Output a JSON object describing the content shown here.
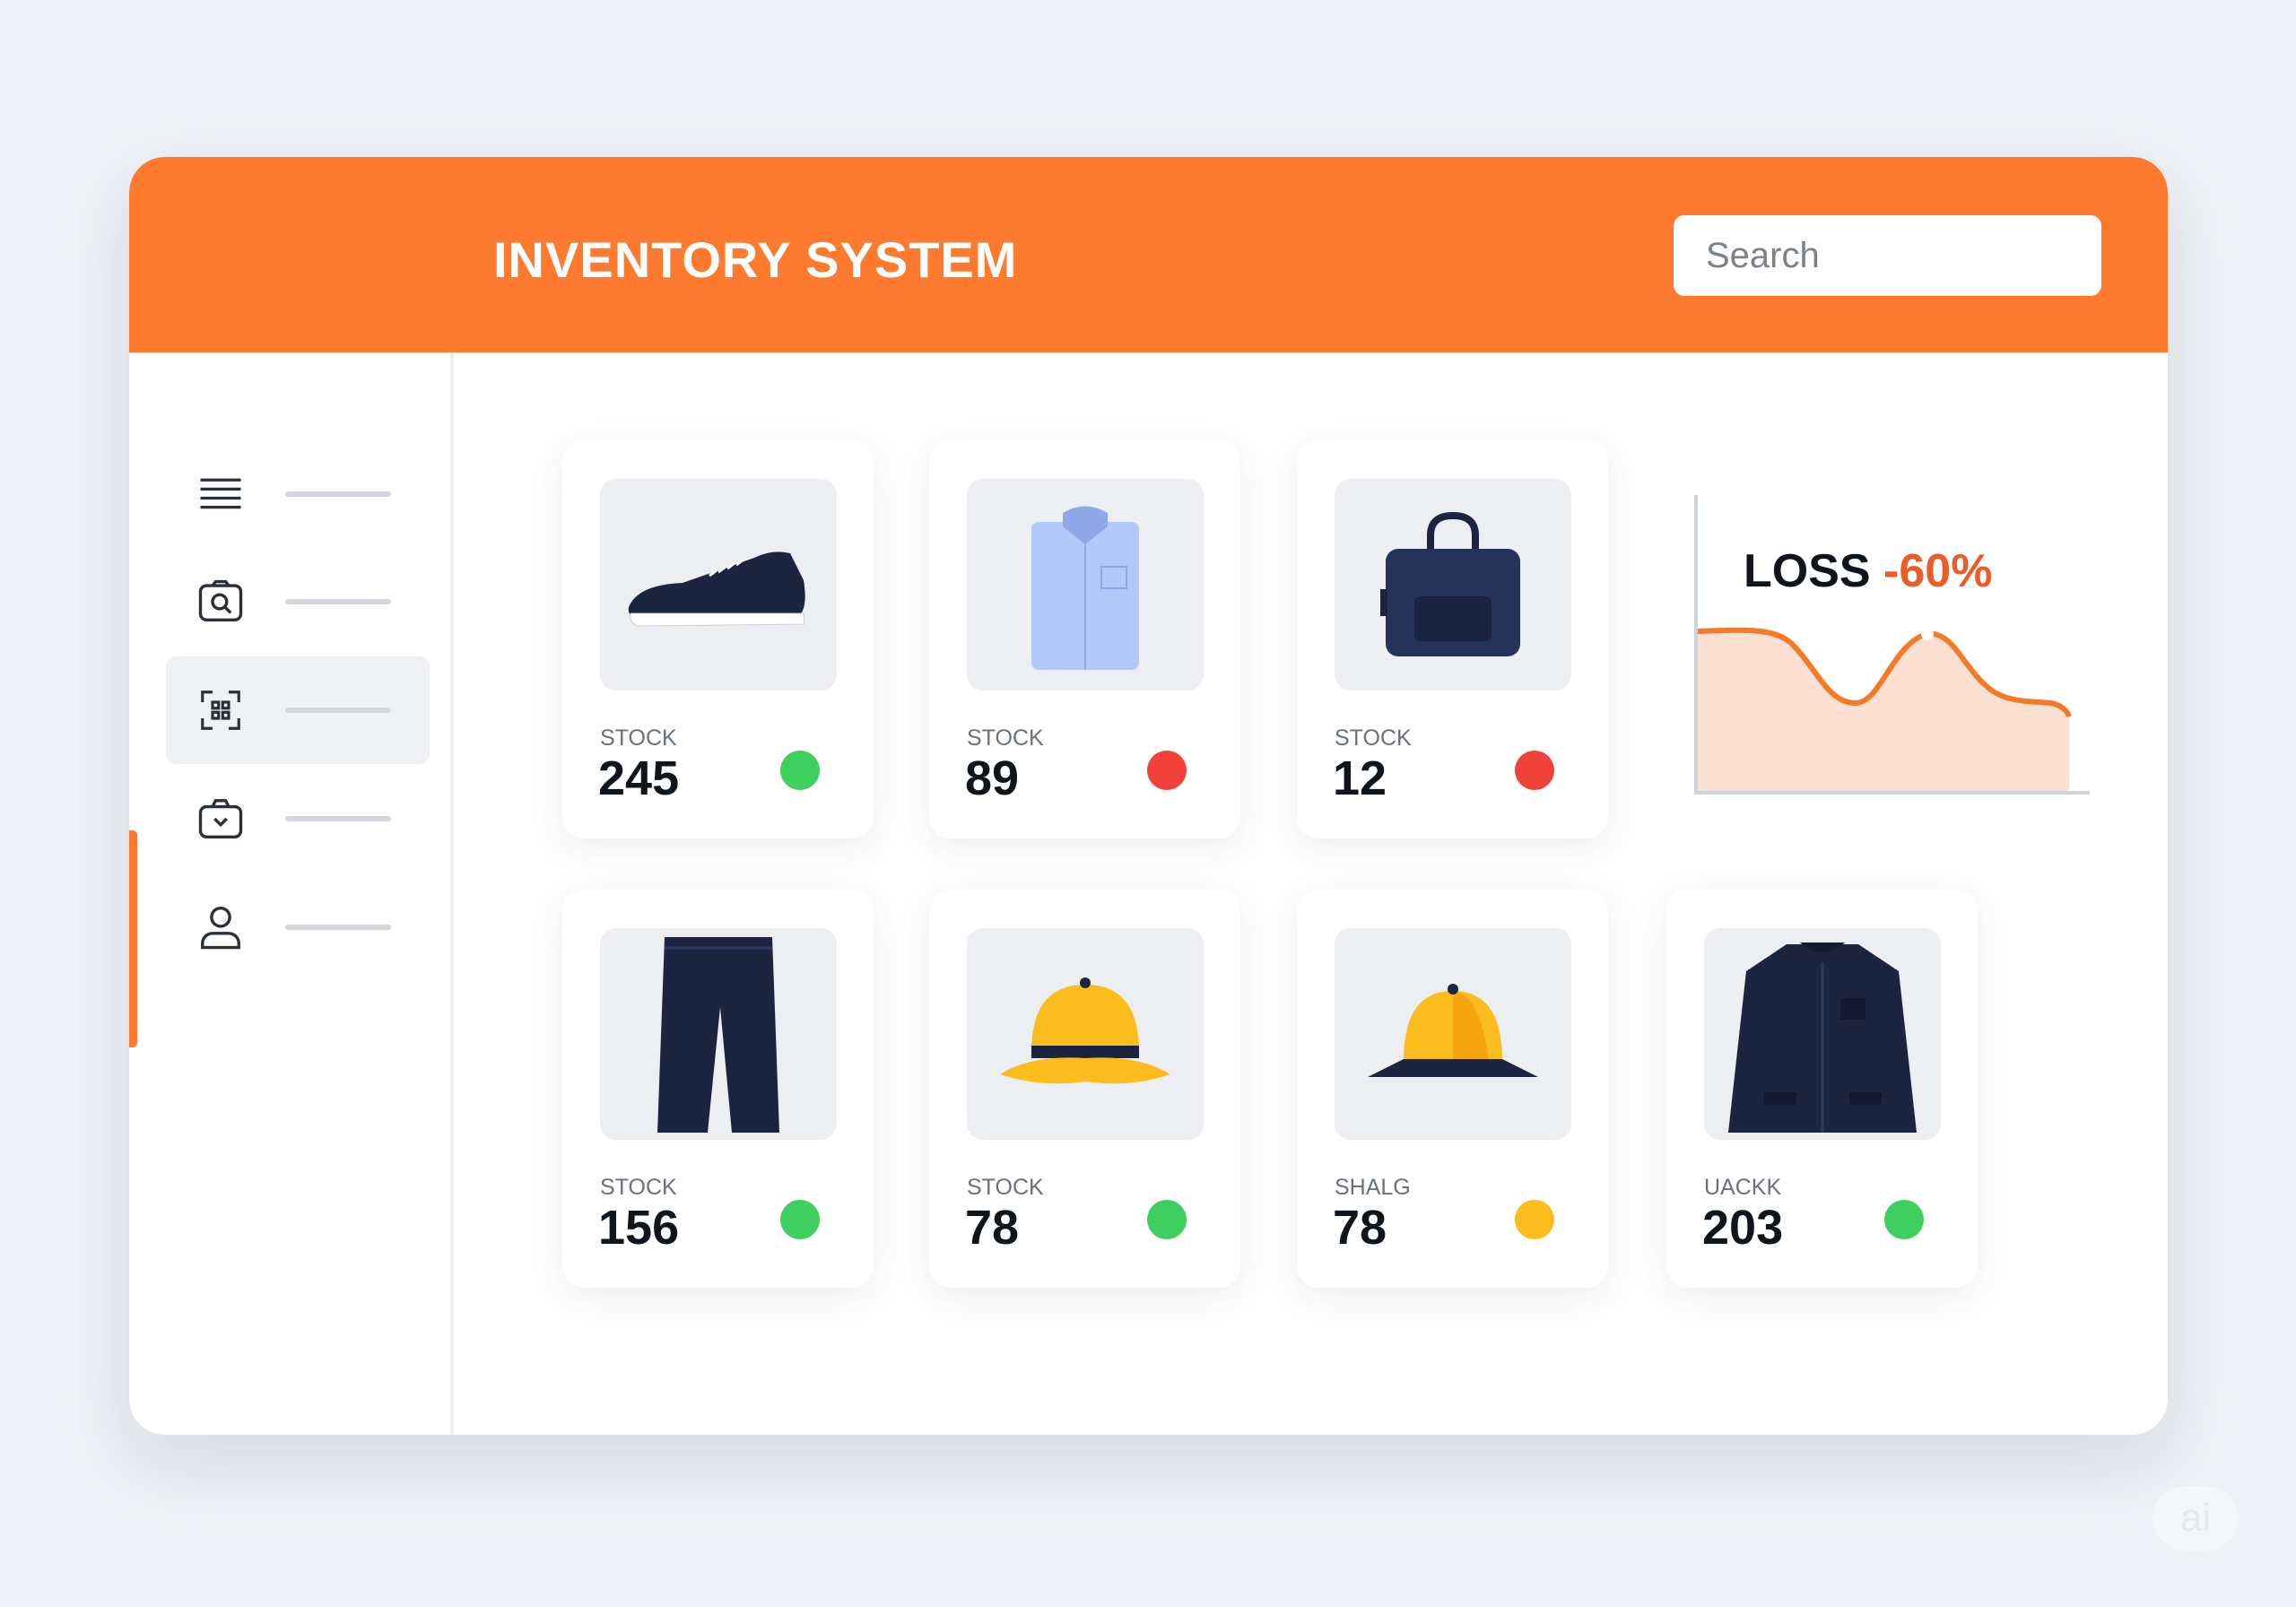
{
  "header": {
    "title": "INVENTORY SYSTEM",
    "search_placeholder": "Search",
    "search_icon": "search-icon"
  },
  "sidebar": {
    "items": [
      {
        "icon": "menu-icon",
        "active": false
      },
      {
        "icon": "photo-search-icon",
        "active": false
      },
      {
        "icon": "scan-icon",
        "active": true
      },
      {
        "icon": "camera-icon",
        "active": false
      },
      {
        "icon": "user-icon",
        "active": false
      }
    ]
  },
  "products": [
    {
      "image": "sneaker",
      "label": "STOCK",
      "value": "245",
      "status": "green"
    },
    {
      "image": "shirt",
      "label": "STOCK",
      "value": "89",
      "status": "red"
    },
    {
      "image": "bag",
      "label": "STOCK",
      "value": "12",
      "status": "red"
    },
    {
      "image": "pants",
      "label": "STOCK",
      "value": "156",
      "status": "green"
    },
    {
      "image": "cap",
      "label": "STOCK",
      "value": "78",
      "status": "green"
    },
    {
      "image": "hat",
      "label": "SHALG",
      "value": "78",
      "status": "yellow"
    },
    {
      "image": "jacket",
      "label": "UACKK",
      "value": "203",
      "status": "green"
    }
  ],
  "loss_widget": {
    "label": "LOSS",
    "value": "-60%"
  },
  "colors": {
    "accent": "#fd7a2e",
    "green": "#3ecf5f",
    "red": "#f0413a",
    "yellow": "#fbbd1d",
    "loss": "#ef5a2a"
  },
  "watermark": "ai"
}
